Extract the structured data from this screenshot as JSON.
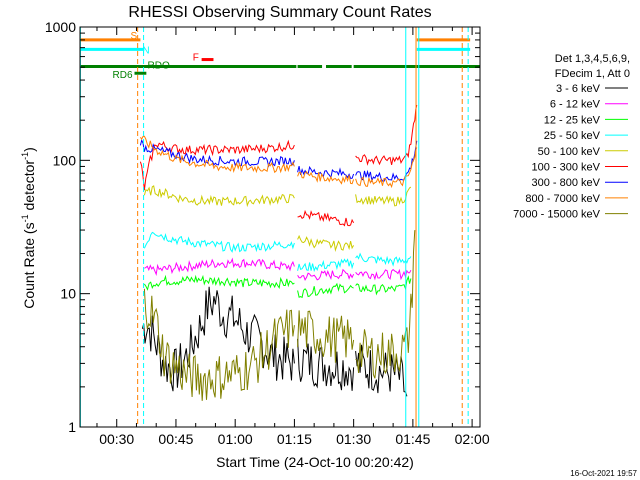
{
  "chart_data": {
    "type": "line",
    "title": "RHESSI Observing Summary Count Rates",
    "xlabel": "Start Time (24-Oct-10 00:20:42)",
    "ylabel": "Count Rate (s⁻¹ detector⁻¹)",
    "ylabel_main": "Count Rate (s",
    "ylabel_sup1": "-1",
    "ylabel_mid": " detector",
    "ylabel_sup2": "-1",
    "ylabel_end": ")",
    "y_scale": "log",
    "xlim_minutes": [
      20.7,
      122.0
    ],
    "ylim": [
      1,
      1000
    ],
    "x_ticks": [
      {
        "label": "00:30",
        "minute": 30
      },
      {
        "label": "00:45",
        "minute": 45
      },
      {
        "label": "01:00",
        "minute": 60
      },
      {
        "label": "01:15",
        "minute": 75
      },
      {
        "label": "01:30",
        "minute": 90
      },
      {
        "label": "01:45",
        "minute": 105
      },
      {
        "label": "02:00",
        "minute": 120
      }
    ],
    "y_ticks": [
      {
        "label": "1",
        "value": 1
      },
      {
        "label": "10",
        "value": 10
      },
      {
        "label": "100",
        "value": 100
      },
      {
        "label": "1000",
        "value": 1000
      }
    ],
    "detector_info": [
      "Det 1,3,4,5,6,9,",
      "FDecim 1, Att 0"
    ],
    "legend_position": "right",
    "series": [
      {
        "name": "3 - 6 keV",
        "color": "#000000",
        "segments": [
          [
            [
              36.5,
              5.5
            ],
            [
              37.5,
              6
            ],
            [
              39,
              5
            ],
            [
              42,
              3
            ],
            [
              45,
              2.6
            ],
            [
              48,
              3.5
            ],
            [
              51,
              5.5
            ],
            [
              53,
              8
            ],
            [
              55,
              9
            ],
            [
              57,
              7
            ],
            [
              60,
              6.5
            ],
            [
              63,
              5
            ],
            [
              66,
              4.5
            ],
            [
              69,
              3.5
            ],
            [
              72,
              3.2
            ],
            [
              75,
              3
            ]
          ],
          [
            [
              75.8,
              3.3
            ],
            [
              80,
              3
            ],
            [
              85,
              2.9
            ],
            [
              90,
              2.8
            ]
          ],
          [
            [
              90.5,
              3
            ],
            [
              95,
              2.7
            ],
            [
              100,
              2.5
            ],
            [
              102,
              2.3
            ],
            [
              103.5,
              1.7
            ]
          ]
        ]
      },
      {
        "name": "6 - 12 keV",
        "color": "#ff00ff",
        "segments": [
          [
            [
              37,
              15
            ],
            [
              40,
              15
            ],
            [
              44,
              15.5
            ],
            [
              48,
              16
            ],
            [
              52,
              16.5
            ],
            [
              56,
              17
            ],
            [
              60,
              17
            ],
            [
              64,
              17
            ],
            [
              68,
              16.5
            ],
            [
              72,
              16
            ],
            [
              75,
              16
            ]
          ],
          [
            [
              75.8,
              13.5
            ],
            [
              80,
              13.5
            ],
            [
              85,
              14
            ],
            [
              90,
              14
            ]
          ],
          [
            [
              90.5,
              14.5
            ],
            [
              95,
              14
            ],
            [
              100,
              14
            ],
            [
              102,
              14
            ],
            [
              103.5,
              14.5
            ],
            [
              104.5,
              15
            ]
          ]
        ]
      },
      {
        "name": "12 - 25 keV",
        "color": "#00ff00",
        "segments": [
          [
            [
              37,
              11
            ],
            [
              39,
              12
            ],
            [
              42,
              12.5
            ],
            [
              46,
              12.5
            ],
            [
              50,
              12.8
            ],
            [
              54,
              12.5
            ],
            [
              58,
              12.5
            ],
            [
              62,
              12
            ],
            [
              66,
              12
            ],
            [
              70,
              12
            ],
            [
              75,
              12
            ]
          ],
          [
            [
              75.8,
              10
            ],
            [
              80,
              10.5
            ],
            [
              85,
              11
            ],
            [
              90,
              11
            ]
          ],
          [
            [
              90.5,
              11
            ],
            [
              95,
              10.8
            ],
            [
              100,
              10.8
            ],
            [
              102,
              11
            ],
            [
              103.5,
              12
            ],
            [
              104.5,
              13
            ]
          ]
        ]
      },
      {
        "name": "25 - 50 keV",
        "color": "#00ffff",
        "segments": [
          [
            [
              37,
              22
            ],
            [
              39,
              30
            ],
            [
              42,
              27
            ],
            [
              46,
              25
            ],
            [
              50,
              24
            ],
            [
              55,
              23
            ],
            [
              60,
              22
            ],
            [
              65,
              22.5
            ],
            [
              70,
              23
            ],
            [
              75,
              24
            ]
          ],
          [
            [
              75.8,
              15.5
            ],
            [
              80,
              16
            ],
            [
              85,
              16.5
            ],
            [
              90,
              17
            ]
          ],
          [
            [
              90.5,
              19
            ],
            [
              95,
              18
            ],
            [
              100,
              17.5
            ],
            [
              102,
              17.5
            ],
            [
              103.5,
              18
            ],
            [
              104.5,
              19
            ]
          ]
        ]
      },
      {
        "name": "50 - 100 keV",
        "color": "#ffff00",
        "draw_color": "#cccc00",
        "segments": [
          [
            [
              37,
              55
            ],
            [
              39,
              60
            ],
            [
              42,
              57
            ],
            [
              46,
              52
            ],
            [
              50,
              50
            ],
            [
              55,
              49
            ],
            [
              60,
              49.5
            ],
            [
              65,
              50
            ],
            [
              70,
              51
            ],
            [
              75,
              52
            ]
          ],
          [
            [
              75.8,
              26
            ],
            [
              80,
              24
            ],
            [
              85,
              23
            ],
            [
              90,
              23
            ]
          ],
          [
            [
              90.5,
              52
            ],
            [
              95,
              50
            ],
            [
              100,
              49
            ],
            [
              102,
              50
            ],
            [
              103.5,
              55
            ],
            [
              104.5,
              63
            ]
          ]
        ]
      },
      {
        "name": "100 - 300 keV",
        "color": "#ff0000",
        "segments": [
          [
            [
              36,
              100
            ],
            [
              37,
              62
            ],
            [
              38.5,
              100
            ],
            [
              40,
              135
            ],
            [
              43,
              125
            ],
            [
              47,
              120
            ],
            [
              51,
              120
            ],
            [
              55,
              120
            ],
            [
              60,
              120
            ],
            [
              65,
              122
            ],
            [
              70,
              125
            ],
            [
              75,
              130
            ]
          ],
          [
            [
              75.8,
              40
            ],
            [
              80,
              38
            ],
            [
              85,
              36
            ],
            [
              90,
              34
            ]
          ],
          [
            [
              90.5,
              105
            ],
            [
              95,
              100
            ],
            [
              100,
              100
            ],
            [
              102,
              100
            ],
            [
              103.5,
              105
            ],
            [
              104.5,
              135
            ],
            [
              105.5,
              210
            ],
            [
              106,
              260
            ]
          ]
        ]
      },
      {
        "name": "300 - 800 keV",
        "color": "#0000ff",
        "segments": [
          [
            [
              36,
              140
            ],
            [
              37,
              125
            ],
            [
              40,
              120
            ],
            [
              45,
              110
            ],
            [
              50,
              102
            ],
            [
              55,
              100
            ],
            [
              60,
              98
            ],
            [
              65,
              98
            ],
            [
              70,
              98
            ],
            [
              75,
              100
            ]
          ],
          [
            [
              75.8,
              85
            ],
            [
              80,
              82
            ],
            [
              85,
              80
            ],
            [
              90,
              79
            ]
          ],
          [
            [
              90.5,
              78
            ],
            [
              95,
              76
            ],
            [
              100,
              74
            ],
            [
              102,
              74
            ],
            [
              103.5,
              78
            ],
            [
              104.5,
              90
            ],
            [
              105.5,
              115
            ],
            [
              106,
              140
            ]
          ]
        ]
      },
      {
        "name": "800 - 7000 keV",
        "color": "#ff8000",
        "segments": [
          [
            [
              36,
              150
            ],
            [
              37,
              140
            ],
            [
              40,
              120
            ],
            [
              45,
              102
            ],
            [
              50,
              95
            ],
            [
              55,
              90
            ],
            [
              60,
              88
            ],
            [
              65,
              88
            ],
            [
              70,
              88
            ],
            [
              75,
              90
            ]
          ],
          [
            [
              75.8,
              80
            ],
            [
              80,
              76
            ],
            [
              85,
              73
            ],
            [
              90,
              72
            ]
          ],
          [
            [
              90.5,
              70
            ],
            [
              95,
              68
            ],
            [
              100,
              68
            ],
            [
              102,
              68
            ],
            [
              103.5,
              72
            ],
            [
              104.5,
              85
            ],
            [
              105.5,
              105
            ],
            [
              106,
              125
            ]
          ]
        ]
      },
      {
        "name": "7000 - 15000 keV",
        "color": "#808000",
        "segments": [
          [
            [
              37,
              9
            ],
            [
              38.5,
              7.5
            ],
            [
              40,
              6
            ],
            [
              42,
              3.5
            ],
            [
              44,
              3
            ],
            [
              48,
              2.4
            ],
            [
              52,
              2.3
            ],
            [
              56,
              2.4
            ],
            [
              60,
              2.5
            ],
            [
              65,
              3
            ],
            [
              70,
              4.5
            ],
            [
              75,
              5.8
            ]
          ],
          [
            [
              75.8,
              5.5
            ],
            [
              80,
              5
            ],
            [
              85,
              4.6
            ],
            [
              90,
              4.5
            ]
          ],
          [
            [
              90.5,
              3.7
            ],
            [
              95,
              3.5
            ],
            [
              100,
              3.6
            ],
            [
              102,
              3.8
            ],
            [
              103.5,
              4
            ],
            [
              104.5,
              7
            ],
            [
              105.5,
              30
            ]
          ]
        ]
      }
    ],
    "flag_bars": [
      {
        "label": "S",
        "color": "#ff8000",
        "value": 800,
        "segments": [
          [
            20.7,
            36
          ],
          [
            106,
            119.5
          ]
        ]
      },
      {
        "label": "N",
        "color": "#00ffff",
        "value": 680,
        "segments": [
          [
            20.7,
            37
          ],
          [
            106,
            119.5
          ]
        ]
      },
      {
        "label": "RD6",
        "color": "#008000",
        "value": 450,
        "segments": [
          [
            34.5,
            37.5
          ]
        ]
      },
      {
        "label": "RDO",
        "color": "#008000",
        "value": 505,
        "segments": [
          [
            20.7,
            75.5
          ],
          [
            75.8,
            82
          ],
          [
            83,
            89.5
          ],
          [
            90,
            122
          ]
        ]
      },
      {
        "label": "F",
        "color": "#ff0000",
        "value": 570,
        "segments": [
          [
            51.5,
            54.5
          ]
        ]
      }
    ],
    "vertical_lines": [
      {
        "minute": 20.8,
        "color": "#00ffff",
        "style": "solid"
      },
      {
        "minute": 35.3,
        "color": "#ff8000",
        "style": "dashed"
      },
      {
        "minute": 36.8,
        "color": "#00ffff",
        "style": "dashed"
      },
      {
        "minute": 103.2,
        "color": "#00ffff",
        "style": "solid"
      },
      {
        "minute": 105.8,
        "color": "#ff8000",
        "style": "solid"
      },
      {
        "minute": 106.5,
        "color": "#00ffff",
        "style": "solid"
      },
      {
        "minute": 117.5,
        "color": "#ff8000",
        "style": "dashed"
      },
      {
        "minute": 119.0,
        "color": "#00ffff",
        "style": "dashed"
      }
    ]
  },
  "footer_date": "16-Oct-2021 19:57"
}
